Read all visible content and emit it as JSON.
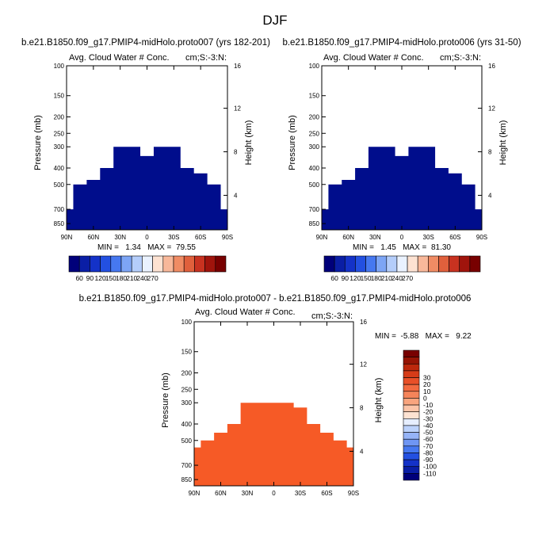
{
  "page_title": "DJF",
  "chart_data": [
    {
      "type": "heatmap",
      "title": "b.e21.B1850.f09_g17.PMIP4-midHolo.proto007 (yrs 182-201)",
      "subtitle_left": "Avg. Cloud Water # Conc.",
      "subtitle_right": "cm;S:-3:N:",
      "ylabel": "Pressure (mb)",
      "ylabel_right": "Height (km)",
      "x_ticks": [
        "90N",
        "60N",
        "30N",
        "0",
        "30S",
        "60S",
        "90S"
      ],
      "y_ticks": [
        "100",
        "150",
        "200",
        "250",
        "300",
        "400",
        "500",
        "700",
        "850"
      ],
      "y_right_ticks": [
        "16",
        "12",
        "8",
        "4"
      ],
      "stats": "MIN =   1.34   MAX =  79.55",
      "fill_color": "#000d8c",
      "profile": {
        "x": [
          "90N",
          "75N",
          "60N",
          "45N",
          "30N",
          "15N",
          "0",
          "15S",
          "30S",
          "45S",
          "60S",
          "75S",
          "90S"
        ],
        "top_pressure": [
          700,
          500,
          470,
          400,
          300,
          300,
          340,
          300,
          300,
          400,
          430,
          500,
          700
        ]
      }
    },
    {
      "type": "heatmap",
      "title": "b.e21.B1850.f09_g17.PMIP4-midHolo.proto006 (yrs 31-50)",
      "subtitle_left": "Avg. Cloud Water # Conc.",
      "subtitle_right": "cm;S:-3:N:",
      "ylabel": "Pressure (mb)",
      "ylabel_right": "Height (km)",
      "x_ticks": [
        "90N",
        "60N",
        "30N",
        "0",
        "30S",
        "60S",
        "90S"
      ],
      "y_ticks": [
        "100",
        "150",
        "200",
        "250",
        "300",
        "400",
        "500",
        "700",
        "850"
      ],
      "y_right_ticks": [
        "16",
        "12",
        "8",
        "4"
      ],
      "stats": "MIN =   1.45   MAX =  81.30",
      "fill_color": "#000d8c",
      "profile": {
        "x": [
          "90N",
          "75N",
          "60N",
          "45N",
          "30N",
          "15N",
          "0",
          "15S",
          "30S",
          "45S",
          "60S",
          "75S",
          "90S"
        ],
        "top_pressure": [
          700,
          500,
          470,
          400,
          300,
          300,
          340,
          300,
          300,
          400,
          430,
          500,
          700
        ]
      }
    },
    {
      "type": "heatmap",
      "title": "b.e21.B1850.f09_g17.PMIP4-midHolo.proto007 - b.e21.B1850.f09_g17.PMIP4-midHolo.proto006",
      "subtitle_left": "Avg. Cloud Water # Conc.",
      "subtitle_right": "cm;S:-3:N:",
      "ylabel": "Pressure (mb)",
      "ylabel_right": "Height (km)",
      "x_ticks": [
        "90N",
        "60N",
        "30N",
        "0",
        "30S",
        "60S",
        "90S"
      ],
      "y_ticks": [
        "100",
        "150",
        "200",
        "250",
        "300",
        "400",
        "500",
        "700",
        "850"
      ],
      "y_right_ticks": [
        "16",
        "12",
        "8",
        "4"
      ],
      "stats": "MIN =  -5.88   MAX =   9.22",
      "fill_color": "#f65a26",
      "profile": {
        "x": [
          "90N",
          "75N",
          "60N",
          "45N",
          "30N",
          "15N",
          "0",
          "15S",
          "30S",
          "45S",
          "60S",
          "75S",
          "90S"
        ],
        "top_pressure": [
          550,
          500,
          450,
          400,
          300,
          300,
          300,
          300,
          320,
          400,
          450,
          500,
          550
        ]
      }
    }
  ],
  "colorbar_main": {
    "colors": [
      "#00007a",
      "#0a1ea5",
      "#1432c8",
      "#2350e1",
      "#4678f0",
      "#7da5f5",
      "#b4cdfa",
      "#eaf2ff",
      "#fde2d2",
      "#f8b89a",
      "#f08c64",
      "#e0603c",
      "#c83220",
      "#a0140c",
      "#780000"
    ],
    "labels": [
      "60",
      "90",
      "120",
      "150",
      "180",
      "210",
      "240",
      "270"
    ]
  },
  "colorbar_diff": {
    "colors": [
      "#00007a",
      "#0a1ea5",
      "#1432c8",
      "#2350e1",
      "#4678f0",
      "#6f96f3",
      "#96b4f7",
      "#bcd2fb",
      "#e6eeff",
      "#fde2d2",
      "#fbc4a8",
      "#f8a47e",
      "#f5845a",
      "#f26a40",
      "#e85028",
      "#d63c18",
      "#bc280c",
      "#961404",
      "#780000"
    ],
    "labels": [
      "-110",
      "-100",
      "-90",
      "-80",
      "-70",
      "-60",
      "-50",
      "-40",
      "-30",
      "-20",
      "-10",
      "0",
      "10",
      "20",
      "30"
    ]
  }
}
